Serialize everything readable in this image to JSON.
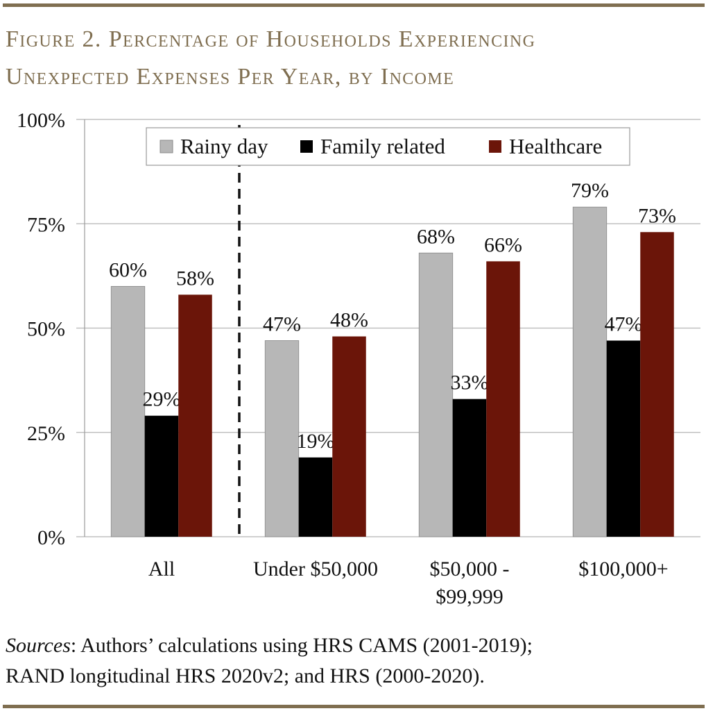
{
  "title_lines": [
    "Figure 2. Percentage of Households Experiencing",
    "Unexpected Expenses Per Year, by Income"
  ],
  "source": {
    "label": "Sources",
    "text_line1": ": Authors’ calculations using HRS CAMS (2001-2019);",
    "text_line2": "RAND longitudinal HRS 2020v2; and HRS (2000-2020)."
  },
  "colors": {
    "title": "#7f6e50",
    "rule": "#7f6e50"
  },
  "chart_data": {
    "type": "bar",
    "categories": [
      [
        "All"
      ],
      [
        "Under $50,000"
      ],
      [
        "$50,000 -",
        "$99,999"
      ],
      [
        "$100,000+"
      ]
    ],
    "series": [
      {
        "name": "Rainy day",
        "color": "#b7b7b7",
        "values": [
          60,
          47,
          68,
          79
        ],
        "labels": [
          "60%",
          "47%",
          "68%",
          "79%"
        ]
      },
      {
        "name": "Family related",
        "color": "#000000",
        "values": [
          29,
          19,
          33,
          47
        ],
        "labels": [
          "29%",
          "19%",
          "33%",
          "47%"
        ]
      },
      {
        "name": "Healthcare",
        "color": "#6b1509",
        "values": [
          58,
          48,
          66,
          73
        ],
        "labels": [
          "58%",
          "48%",
          "66%",
          "73%"
        ]
      }
    ],
    "ylim": [
      0,
      100
    ],
    "yticks": [
      0,
      25,
      50,
      75,
      100
    ],
    "ytick_labels": [
      "0%",
      "25%",
      "50%",
      "75%",
      "100%"
    ],
    "grid": true,
    "legend": "top",
    "separator": "dashed line between All and income groups"
  }
}
